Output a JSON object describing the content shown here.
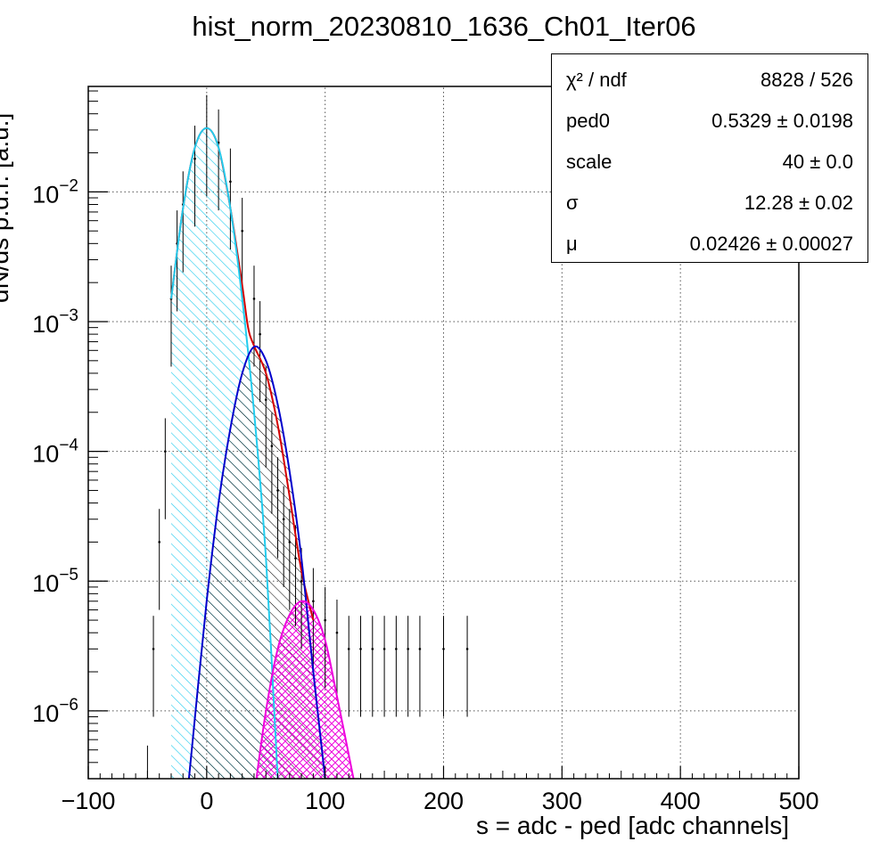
{
  "chart_data": {
    "type": "line",
    "title": "hist_norm_20230810_1636_Ch01_Iter06",
    "xlabel": "s = adc - ped [adc channels]",
    "ylabel": "dN/ds p.d.f. [a.u.]",
    "x_range": [
      -100,
      500
    ],
    "y_range": [
      3e-07,
      0.065
    ],
    "y_scale": "log",
    "grid": true,
    "x_ticks": [
      "−100",
      "0",
      "100",
      "200",
      "300",
      "400",
      "500"
    ],
    "y_ticks": [
      {
        "base": "10",
        "exp": "−2"
      },
      {
        "base": "10",
        "exp": "−3"
      },
      {
        "base": "10",
        "exp": "−4"
      },
      {
        "base": "10",
        "exp": "−5"
      },
      {
        "base": "10",
        "exp": "−6"
      }
    ],
    "series": [
      {
        "color": "#000000",
        "style": "histogram points with error bars",
        "x": [
          -50,
          -45,
          -40,
          -35,
          -30,
          -25,
          -20,
          -10,
          0,
          10,
          20,
          30,
          40,
          45,
          50,
          55,
          60,
          65,
          70,
          75,
          80,
          90,
          100,
          110,
          120,
          130,
          140,
          150,
          160,
          170,
          180,
          200,
          220
        ],
        "y": [
          3e-07,
          3e-06,
          2e-05,
          0.0001,
          0.0015,
          0.004,
          0.008,
          0.018,
          0.031,
          0.024,
          0.012,
          0.005,
          0.0015,
          0.0008,
          0.00025,
          0.00011,
          5e-05,
          3e-05,
          2e-05,
          1.5e-05,
          1e-05,
          7e-06,
          5e-06,
          4e-06,
          3e-06,
          3e-06,
          3e-06,
          3e-06,
          3e-06,
          3e-06,
          3e-06,
          3e-06,
          3e-06
        ]
      },
      {
        "color": "#d40000",
        "style": "total fit",
        "x": [
          -30,
          -20,
          -10,
          0,
          10,
          20,
          30,
          35,
          40,
          50,
          60,
          70,
          80,
          90
        ],
        "y": [
          0.0015,
          0.0075,
          0.022,
          0.031,
          0.022,
          0.0075,
          0.0019,
          0.0009,
          0.00065,
          0.0004,
          0.00016,
          4.5e-05,
          1.2e-05,
          5e-06
        ]
      },
      {
        "color": "#22ccee",
        "style": "hatched fill",
        "x": [
          -30,
          -20,
          -10,
          0,
          10,
          20,
          30,
          40,
          50,
          60
        ],
        "y": [
          0.0015,
          0.0075,
          0.022,
          0.031,
          0.022,
          0.0075,
          0.0015,
          0.0002,
          1.5e-05,
          3e-07
        ]
      },
      {
        "color": "#0000cc",
        "style": "hatched fill",
        "x": [
          -15,
          0,
          10,
          20,
          30,
          40,
          50,
          60,
          70,
          80,
          90,
          100
        ],
        "y": [
          3e-07,
          7e-06,
          4e-05,
          0.00015,
          0.0004,
          0.00064,
          0.0005,
          0.00023,
          7e-05,
          1.5e-05,
          2e-06,
          3e-07
        ]
      },
      {
        "color": "#ee00dd",
        "style": "cross-hatched fill",
        "x": [
          42,
          50,
          60,
          70,
          80,
          90,
          100,
          110,
          124
        ],
        "y": [
          3e-07,
          1e-06,
          3e-06,
          5.5e-06,
          7e-06,
          6e-06,
          3.5e-06,
          1.3e-06,
          3e-07
        ]
      }
    ]
  },
  "stats": [
    {
      "name": "χ² / ndf",
      "value": "8828 / 526"
    },
    {
      "name": "ped0",
      "value": "0.5329 ± 0.0198"
    },
    {
      "name": "scale",
      "value": "40 ± 0.0"
    },
    {
      "name": "σ",
      "value": "12.28 ± 0.02"
    },
    {
      "name": "μ",
      "value": "0.02426 ± 0.00027"
    }
  ]
}
